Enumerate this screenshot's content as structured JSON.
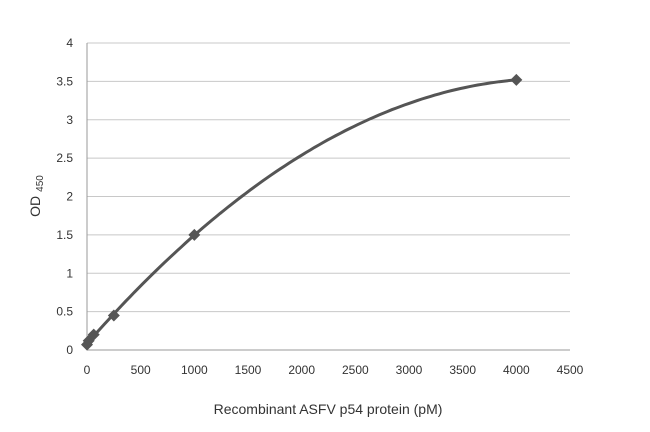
{
  "chart_data": {
    "type": "line",
    "title": "",
    "xlabel": "Recombinant ASFV p54 protein (pM)",
    "ylabel": "OD",
    "ylabel_subscript": "450",
    "xlim": [
      0,
      4500
    ],
    "ylim": [
      0,
      4
    ],
    "xticks": [
      0,
      500,
      1000,
      1500,
      2000,
      2500,
      3000,
      3500,
      4000,
      4500
    ],
    "yticks": [
      0,
      0.5,
      1,
      1.5,
      2,
      2.5,
      3,
      3.5,
      4
    ],
    "grid": "horizontal",
    "marker": "diamond",
    "color": "#555555",
    "series": [
      {
        "x": [
          0,
          15.6,
          62.5,
          250,
          1000,
          4000
        ],
        "y": [
          0.07,
          0.12,
          0.2,
          0.45,
          1.5,
          3.52
        ]
      }
    ]
  }
}
